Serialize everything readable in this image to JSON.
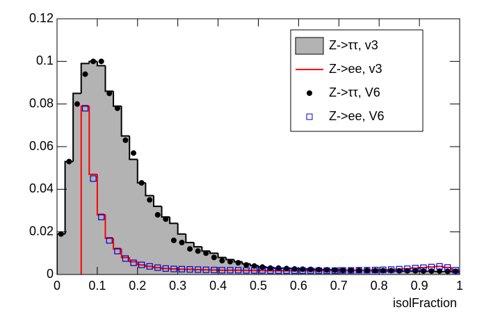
{
  "chart_data": {
    "type": "histogram",
    "xlabel": "isolFraction",
    "bins": [
      0,
      0.02,
      0.04,
      0.06,
      0.08,
      0.1,
      0.12,
      0.14,
      0.16,
      0.18,
      0.2,
      0.22,
      0.24,
      0.26,
      0.28,
      0.3,
      0.32,
      0.34,
      0.36,
      0.38,
      0.4,
      0.42,
      0.44,
      0.46,
      0.48,
      0.5,
      0.52,
      0.54,
      0.56,
      0.58,
      0.6,
      0.62,
      0.64,
      0.66,
      0.68,
      0.7,
      0.72,
      0.74,
      0.76,
      0.78,
      0.8,
      0.82,
      0.84,
      0.86,
      0.88,
      0.9,
      0.92,
      0.94,
      0.96,
      0.98,
      1
    ],
    "xlim": [
      0,
      1
    ],
    "xticks": [
      0,
      0.1,
      0.2,
      0.3,
      0.4,
      0.5,
      0.6,
      0.7,
      0.8,
      0.9,
      1
    ],
    "ylim": [
      0,
      0.12
    ],
    "yticks": [
      0,
      0.02,
      0.04,
      0.06,
      0.08,
      0.1,
      0.12
    ],
    "legend": "top-right",
    "series": [
      {
        "name": "Z->ττ, v3",
        "style": "filled",
        "color": "#b3b3b3",
        "values": [
          0.019,
          0.053,
          0.085,
          0.099,
          0.1,
          0.098,
          0.086,
          0.079,
          0.065,
          0.054,
          0.043,
          0.037,
          0.032,
          0.027,
          0.024,
          0.019,
          0.015,
          0.013,
          0.011,
          0.01,
          0.008,
          0.007,
          0.006,
          0.005,
          0.0042,
          0.0036,
          0.0033,
          0.003,
          0.003,
          0.0028,
          0.0026,
          0.0025,
          0.0024,
          0.0023,
          0.0022,
          0.0021,
          0.002,
          0.002,
          0.0019,
          0.0018,
          0.0018,
          0.0017,
          0.0017,
          0.0016,
          0.0016,
          0.0015,
          0.0015,
          0.0014,
          0.0014,
          0.0013
        ]
      },
      {
        "name": "Z->ee, v3",
        "style": "step",
        "color": "#ff0000",
        "values": [
          null,
          null,
          null,
          0.079,
          0.047,
          0.028,
          0.017,
          0.012,
          0.008,
          0.006,
          0.0045,
          0.0038,
          0.0032,
          0.0028,
          0.0026,
          0.0025,
          0.0024,
          0.0023,
          0.0022,
          0.0021,
          0.002,
          0.002,
          0.002,
          0.0019,
          0.0019,
          0.0019,
          0.0018,
          0.0018,
          0.0018,
          0.0018,
          0.0018,
          0.0018,
          0.0018,
          0.0018,
          0.0018,
          0.0019,
          0.0019,
          0.002,
          0.002,
          0.0021,
          0.0022,
          0.0023,
          0.0025,
          0.0027,
          0.003,
          0.0032,
          0.0035,
          0.0038,
          0.0033,
          0.002
        ]
      },
      {
        "name": "Z->ττ, V6",
        "style": "circle",
        "color": "#000000",
        "values": [
          0.019,
          0.053,
          0.08,
          0.094,
          0.1,
          0.1,
          0.085,
          0.078,
          0.063,
          0.057,
          0.043,
          0.035,
          0.028,
          0.026,
          0.016,
          0.015,
          0.012,
          0.011,
          0.01,
          0.008,
          0.0065,
          0.006,
          0.0055,
          0.0045,
          0.004,
          0.0035,
          0.003,
          0.003,
          0.0028,
          0.0026,
          0.0025,
          0.0024,
          0.0023,
          0.0022,
          0.0021,
          0.002,
          0.002,
          0.0019,
          0.0019,
          0.0018,
          0.0018,
          0.0018,
          0.0017,
          0.0017,
          0.0017,
          0.0016,
          0.0016,
          0.0016,
          0.0015,
          0.0015
        ]
      },
      {
        "name": "Z->ee, V6",
        "style": "square",
        "color": "#0000cc",
        "values": [
          null,
          null,
          null,
          0.078,
          0.045,
          0.027,
          0.016,
          0.011,
          0.0075,
          0.0055,
          0.0045,
          0.0038,
          0.0032,
          0.0028,
          0.0026,
          0.0025,
          0.0024,
          0.0023,
          0.0022,
          0.0021,
          0.002,
          0.002,
          0.002,
          0.0019,
          0.0019,
          0.0019,
          0.0018,
          0.0018,
          0.0018,
          0.0018,
          0.0018,
          0.0018,
          0.0018,
          0.0018,
          0.0018,
          0.0019,
          0.0019,
          0.002,
          0.002,
          0.0021,
          0.0022,
          0.0023,
          0.0025,
          0.0027,
          0.003,
          0.0032,
          0.0035,
          0.0038,
          0.0033,
          0.002
        ]
      }
    ]
  }
}
